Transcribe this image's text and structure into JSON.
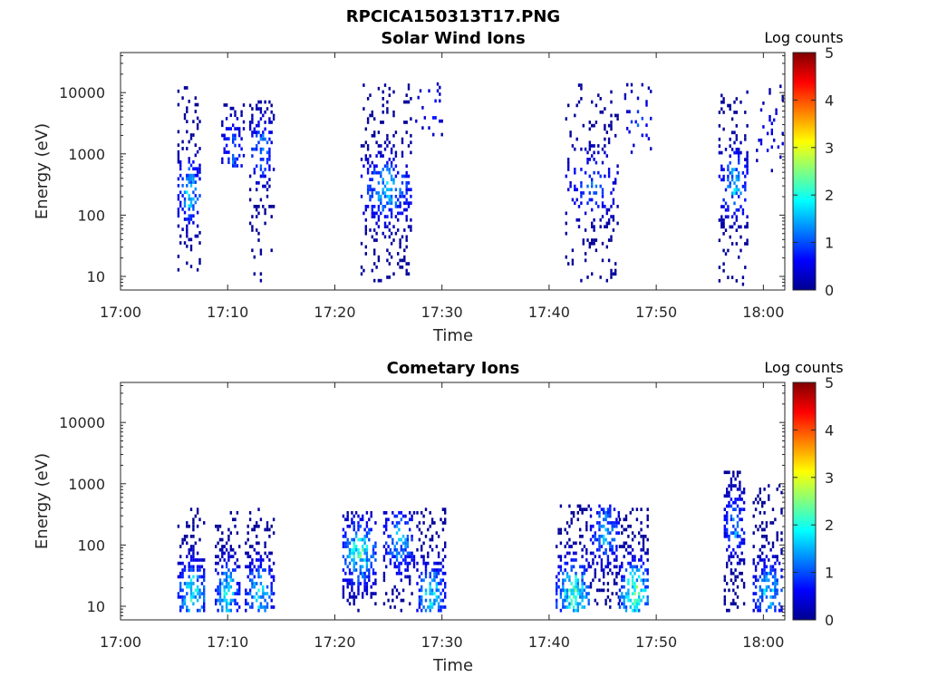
{
  "figure_title": "RPCICA150313T17.PNG",
  "colormap": [
    "#00008f",
    "#0000ff",
    "#0080ff",
    "#00ffff",
    "#80ff80",
    "#ffff00",
    "#ff8000",
    "#ff0000",
    "#800000"
  ],
  "chart_data": [
    {
      "type": "heatmap",
      "title": "Solar Wind Ions",
      "xlabel": "Time",
      "ylabel": "Energy (eV)",
      "x_tick_labels": [
        "17:00",
        "17:10",
        "17:20",
        "17:30",
        "17:40",
        "17:50",
        "18:00"
      ],
      "y_tick_labels": [
        "10",
        "100",
        "1000",
        "10000"
      ],
      "xlim": [
        0,
        62
      ],
      "ylim": [
        6,
        45000
      ],
      "yscale": "log",
      "colorbar": {
        "label": "Log counts",
        "ticks": [
          "0",
          "1",
          "2",
          "3",
          "4",
          "5"
        ],
        "range": [
          0,
          5
        ]
      },
      "clusters": [
        {
          "t0": 5.3,
          "t1": 7.4,
          "emin": 12,
          "emax": 12000,
          "peak_e": 220,
          "peak": 2.2,
          "density": 0.33
        },
        {
          "t0": 9.4,
          "t1": 11.4,
          "emin": 600,
          "emax": 6000,
          "peak_e": 1000,
          "peak": 1.5,
          "density": 0.25
        },
        {
          "t0": 12.0,
          "t1": 14.2,
          "emin": 8,
          "emax": 7000,
          "peak_e": 1100,
          "peak": 1.8,
          "density": 0.3
        },
        {
          "t0": 22.4,
          "t1": 27.0,
          "emin": 8,
          "emax": 14000,
          "peak_e": 250,
          "peak": 2.0,
          "density": 0.27
        },
        {
          "t0": 27.5,
          "t1": 30.0,
          "emin": 1500,
          "emax": 15000,
          "peak_e": 5000,
          "peak": 1.0,
          "density": 0.08
        },
        {
          "t0": 41.5,
          "t1": 46.4,
          "emin": 8,
          "emax": 14000,
          "peak_e": 300,
          "peak": 1.4,
          "density": 0.2
        },
        {
          "t0": 47.0,
          "t1": 49.5,
          "emin": 1000,
          "emax": 14000,
          "peak_e": 3000,
          "peak": 1.3,
          "density": 0.07
        },
        {
          "t0": 55.8,
          "t1": 58.6,
          "emin": 7,
          "emax": 10000,
          "peak_e": 300,
          "peak": 2.0,
          "density": 0.28
        },
        {
          "t0": 59.3,
          "t1": 61.8,
          "emin": 500,
          "emax": 12000,
          "peak_e": 2000,
          "peak": 1.0,
          "density": 0.08
        }
      ]
    },
    {
      "type": "heatmap",
      "title": "Cometary Ions",
      "xlabel": "Time",
      "ylabel": "Energy (eV)",
      "x_tick_labels": [
        "17:00",
        "17:10",
        "17:20",
        "17:30",
        "17:40",
        "17:50",
        "18:00"
      ],
      "y_tick_labels": [
        "10",
        "100",
        "1000",
        "10000"
      ],
      "xlim": [
        0,
        62
      ],
      "ylim": [
        6,
        45000
      ],
      "yscale": "log",
      "colorbar": {
        "label": "Log counts",
        "ticks": [
          "0",
          "1",
          "2",
          "3",
          "4",
          "5"
        ],
        "range": [
          0,
          5
        ]
      },
      "clusters": [
        {
          "t0": 5.3,
          "t1": 7.9,
          "emin": 8,
          "emax": 400,
          "peak_e": 15,
          "peak": 2.6,
          "density": 0.4
        },
        {
          "t0": 8.8,
          "t1": 11.0,
          "emin": 8,
          "emax": 400,
          "peak_e": 15,
          "peak": 2.5,
          "density": 0.38
        },
        {
          "t0": 11.6,
          "t1": 14.2,
          "emin": 8,
          "emax": 400,
          "peak_e": 15,
          "peak": 2.4,
          "density": 0.38
        },
        {
          "t0": 20.7,
          "t1": 23.7,
          "emin": 8,
          "emax": 350,
          "peak_e": 70,
          "peak": 2.8,
          "density": 0.42
        },
        {
          "t0": 24.5,
          "t1": 27.4,
          "emin": 8,
          "emax": 350,
          "peak_e": 110,
          "peak": 2.0,
          "density": 0.38
        },
        {
          "t0": 27.6,
          "t1": 30.2,
          "emin": 8,
          "emax": 400,
          "peak_e": 15,
          "peak": 2.4,
          "density": 0.38
        },
        {
          "t0": 40.6,
          "t1": 43.8,
          "emin": 8,
          "emax": 450,
          "peak_e": 15,
          "peak": 3.0,
          "density": 0.4
        },
        {
          "t0": 43.8,
          "t1": 46.5,
          "emin": 8,
          "emax": 450,
          "peak_e": 150,
          "peak": 2.0,
          "density": 0.38
        },
        {
          "t0": 46.5,
          "t1": 49.3,
          "emin": 8,
          "emax": 450,
          "peak_e": 15,
          "peak": 3.2,
          "density": 0.4
        },
        {
          "t0": 56.3,
          "t1": 58.3,
          "emin": 8,
          "emax": 1500,
          "peak_e": 200,
          "peak": 1.8,
          "density": 0.36
        },
        {
          "t0": 59.0,
          "t1": 61.8,
          "emin": 8,
          "emax": 1000,
          "peak_e": 15,
          "peak": 2.3,
          "density": 0.38
        }
      ]
    }
  ]
}
